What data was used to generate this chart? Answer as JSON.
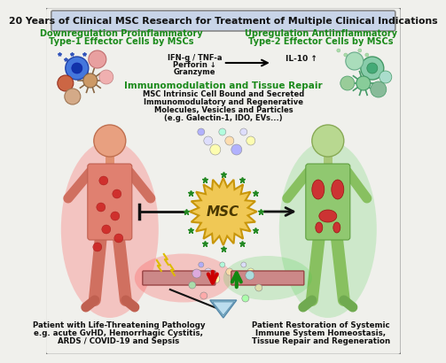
{
  "title": "20 Years of Clinical MSC Research for Treatment of Multiple Clinical Indications",
  "bg_color": "#f0f0ec",
  "border_color": "#777777",
  "title_bg": "#c8d4e8",
  "green_color": "#1a8a1a",
  "left_heading1": "Downregulation Proinflammatory",
  "left_heading2": "Type-1 Effector Cells by MSCs",
  "right_heading1": "Upregulation Antiinflammatory",
  "right_heading2": "Type-2 Effector Cells by MSCs",
  "center_heading1": "Immunomodulation and Tissue Repair",
  "center_sub1": "MSC Intrinsic Cell Bound and Secreted",
  "center_sub2": "Immunomodulatory and Regenerative",
  "center_sub3": "Molecules, Vesicles and Particles",
  "center_sub4": "(e.g. Galectin-1, IDO, EVs...)",
  "msc_label": "MSC",
  "bottom_left1": "Patient with Life-Threatening Pathology",
  "bottom_left2": "e.g. acute GvHD, Hemorrhagic Cystitis,",
  "bottom_left3": "ARDS / COVID-19 and Sepsis",
  "bottom_right1": "Patient Restoration of Systemic",
  "bottom_right2": "Immune System Homeostasis,",
  "bottom_right3": "Tissue Repair and Regeneration",
  "msc_fill": "#f0c855",
  "msc_edge": "#c8960a"
}
